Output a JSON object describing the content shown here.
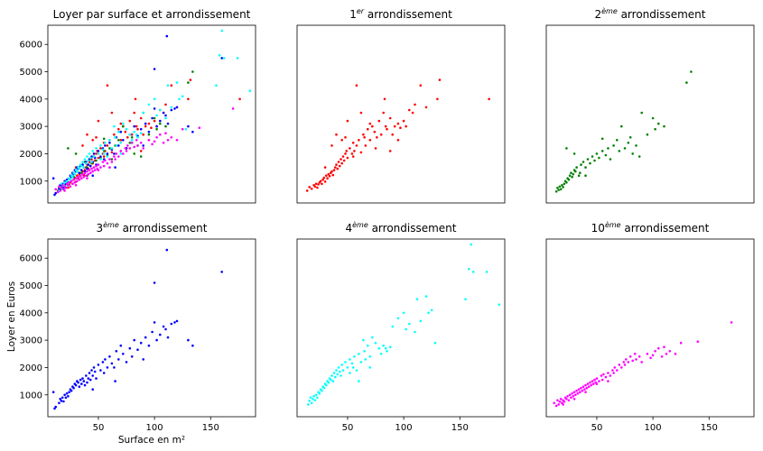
{
  "figure": {
    "shared_ylabel": "Loyer en Euros",
    "shared_xlabel": "Surface en m²",
    "x_ticks": [
      50,
      100,
      150
    ],
    "y_ticks": [
      1000,
      2000,
      3000,
      4000,
      5000,
      6000
    ],
    "xlim": [
      5,
      190
    ],
    "ylim": [
      200,
      6700
    ]
  },
  "chart_data": [
    {
      "type": "scatter",
      "title": "Loyer par surface et arrondissement",
      "subplot": "all",
      "series_colors": [
        "#ff0000",
        "#008000",
        "#0000ff",
        "#00ffff",
        "#ff00ff"
      ]
    },
    {
      "type": "scatter",
      "title_base": "1",
      "title_sup": "er",
      "title_rest": " arrondissement",
      "color": "#ff0000",
      "points": [
        [
          14,
          650
        ],
        [
          16,
          780
        ],
        [
          18,
          720
        ],
        [
          20,
          850
        ],
        [
          21,
          800
        ],
        [
          22,
          900
        ],
        [
          23,
          760
        ],
        [
          24,
          880
        ],
        [
          25,
          950
        ],
        [
          26,
          1000
        ],
        [
          27,
          900
        ],
        [
          28,
          1050
        ],
        [
          29,
          1120
        ],
        [
          30,
          980
        ],
        [
          31,
          1200
        ],
        [
          32,
          1100
        ],
        [
          33,
          1250
        ],
        [
          34,
          1180
        ],
        [
          35,
          1300
        ],
        [
          36,
          1350
        ],
        [
          37,
          1220
        ],
        [
          38,
          1400
        ],
        [
          39,
          1500
        ],
        [
          40,
          1600
        ],
        [
          41,
          1450
        ],
        [
          42,
          1700
        ],
        [
          43,
          1550
        ],
        [
          44,
          1800
        ],
        [
          45,
          1650
        ],
        [
          46,
          1900
        ],
        [
          47,
          1750
        ],
        [
          48,
          2000
        ],
        [
          49,
          2100
        ],
        [
          50,
          1850
        ],
        [
          52,
          2200
        ],
        [
          54,
          2000
        ],
        [
          55,
          2400
        ],
        [
          56,
          2100
        ],
        [
          58,
          2300
        ],
        [
          60,
          2500
        ],
        [
          62,
          2050
        ],
        [
          64,
          2700
        ],
        [
          65,
          2600
        ],
        [
          66,
          2300
        ],
        [
          68,
          2900
        ],
        [
          70,
          2500
        ],
        [
          72,
          3000
        ],
        [
          74,
          2800
        ],
        [
          76,
          2600
        ],
        [
          78,
          3200
        ],
        [
          80,
          2700
        ],
        [
          82,
          3500
        ],
        [
          84,
          3000
        ],
        [
          85,
          2900
        ],
        [
          88,
          3300
        ],
        [
          90,
          2700
        ],
        [
          92,
          3000
        ],
        [
          95,
          3100
        ],
        [
          97,
          2950
        ],
        [
          100,
          3200
        ],
        [
          102,
          3000
        ],
        [
          105,
          3600
        ],
        [
          108,
          3500
        ],
        [
          110,
          3800
        ],
        [
          115,
          4500
        ],
        [
          120,
          3700
        ],
        [
          130,
          4000
        ],
        [
          132,
          4700
        ],
        [
          58,
          4500
        ],
        [
          62,
          3500
        ],
        [
          45,
          2500
        ],
        [
          50,
          3200
        ],
        [
          70,
          3100
        ],
        [
          83,
          4000
        ],
        [
          176,
          4000
        ],
        [
          36,
          2300
        ],
        [
          40,
          2700
        ],
        [
          48,
          2600
        ],
        [
          55,
          1900
        ],
        [
          75,
          2200
        ],
        [
          30,
          1500
        ],
        [
          95,
          2500
        ],
        [
          88,
          2100
        ]
      ]
    },
    {
      "type": "scatter",
      "title_base": "2",
      "title_sup": "ème",
      "title_rest": " arrondissement",
      "color": "#008000",
      "points": [
        [
          14,
          620
        ],
        [
          15,
          750
        ],
        [
          16,
          680
        ],
        [
          17,
          800
        ],
        [
          18,
          700
        ],
        [
          19,
          850
        ],
        [
          20,
          780
        ],
        [
          21,
          900
        ],
        [
          22,
          1000
        ],
        [
          23,
          950
        ],
        [
          24,
          1100
        ],
        [
          25,
          1050
        ],
        [
          26,
          1200
        ],
        [
          27,
          1300
        ],
        [
          28,
          1150
        ],
        [
          29,
          1250
        ],
        [
          30,
          1400
        ],
        [
          31,
          1350
        ],
        [
          32,
          1500
        ],
        [
          34,
          1200
        ],
        [
          35,
          1300
        ],
        [
          36,
          1600
        ],
        [
          38,
          1700
        ],
        [
          40,
          1500
        ],
        [
          42,
          1800
        ],
        [
          44,
          1650
        ],
        [
          46,
          1900
        ],
        [
          48,
          1750
        ],
        [
          50,
          2000
        ],
        [
          52,
          1850
        ],
        [
          55,
          2100
        ],
        [
          58,
          1950
        ],
        [
          60,
          2200
        ],
        [
          62,
          1800
        ],
        [
          65,
          2300
        ],
        [
          68,
          2500
        ],
        [
          70,
          2100
        ],
        [
          72,
          3000
        ],
        [
          75,
          2200
        ],
        [
          78,
          2400
        ],
        [
          80,
          2600
        ],
        [
          82,
          2000
        ],
        [
          85,
          2300
        ],
        [
          88,
          1900
        ],
        [
          90,
          3500
        ],
        [
          95,
          2700
        ],
        [
          100,
          3300
        ],
        [
          102,
          2900
        ],
        [
          105,
          3100
        ],
        [
          110,
          3000
        ],
        [
          130,
          4600
        ],
        [
          134,
          5000
        ],
        [
          23,
          2200
        ],
        [
          30,
          2000
        ],
        [
          40,
          1200
        ],
        [
          55,
          2550
        ]
      ]
    },
    {
      "type": "scatter",
      "title_base": "3",
      "title_sup": "ème",
      "title_rest": " arrondissement",
      "color": "#0000ff",
      "points": [
        [
          10,
          1100
        ],
        [
          11,
          500
        ],
        [
          12,
          560
        ],
        [
          15,
          700
        ],
        [
          16,
          850
        ],
        [
          17,
          780
        ],
        [
          18,
          900
        ],
        [
          19,
          760
        ],
        [
          20,
          1000
        ],
        [
          21,
          900
        ],
        [
          22,
          1050
        ],
        [
          23,
          950
        ],
        [
          24,
          1100
        ],
        [
          25,
          1200
        ],
        [
          26,
          1150
        ],
        [
          27,
          1300
        ],
        [
          28,
          1250
        ],
        [
          29,
          1400
        ],
        [
          30,
          1350
        ],
        [
          31,
          1500
        ],
        [
          32,
          1450
        ],
        [
          33,
          1300
        ],
        [
          34,
          1550
        ],
        [
          35,
          1400
        ],
        [
          36,
          1600
        ],
        [
          37,
          1500
        ],
        [
          38,
          1350
        ],
        [
          39,
          1700
        ],
        [
          40,
          1450
        ],
        [
          41,
          1600
        ],
        [
          42,
          1800
        ],
        [
          43,
          1550
        ],
        [
          44,
          1900
        ],
        [
          45,
          1700
        ],
        [
          46,
          2000
        ],
        [
          47,
          1850
        ],
        [
          48,
          1600
        ],
        [
          50,
          2100
        ],
        [
          52,
          1900
        ],
        [
          54,
          2200
        ],
        [
          55,
          1800
        ],
        [
          56,
          2300
        ],
        [
          58,
          2000
        ],
        [
          60,
          2400
        ],
        [
          62,
          2150
        ],
        [
          64,
          2000
        ],
        [
          66,
          2600
        ],
        [
          68,
          2300
        ],
        [
          70,
          2800
        ],
        [
          72,
          2500
        ],
        [
          75,
          2200
        ],
        [
          78,
          2700
        ],
        [
          80,
          2400
        ],
        [
          82,
          3000
        ],
        [
          85,
          2650
        ],
        [
          88,
          2900
        ],
        [
          90,
          2300
        ],
        [
          92,
          3100
        ],
        [
          95,
          2800
        ],
        [
          98,
          3300
        ],
        [
          100,
          3650
        ],
        [
          102,
          3000
        ],
        [
          105,
          3200
        ],
        [
          108,
          3500
        ],
        [
          110,
          3400
        ],
        [
          112,
          3100
        ],
        [
          115,
          3600
        ],
        [
          118,
          3650
        ],
        [
          120,
          3700
        ],
        [
          130,
          3000
        ],
        [
          134,
          2800
        ],
        [
          100,
          5100
        ],
        [
          111,
          6300
        ],
        [
          160,
          5500
        ],
        [
          65,
          1500
        ],
        [
          45,
          1200
        ]
      ]
    },
    {
      "type": "scatter",
      "title_base": "4",
      "title_sup": "ème",
      "title_rest": " arrondissement",
      "color": "#00ffff",
      "points": [
        [
          15,
          650
        ],
        [
          16,
          780
        ],
        [
          17,
          900
        ],
        [
          18,
          700
        ],
        [
          19,
          850
        ],
        [
          20,
          950
        ],
        [
          21,
          800
        ],
        [
          22,
          1000
        ],
        [
          23,
          900
        ],
        [
          24,
          1100
        ],
        [
          25,
          1050
        ],
        [
          26,
          1200
        ],
        [
          27,
          1150
        ],
        [
          28,
          1300
        ],
        [
          29,
          1250
        ],
        [
          30,
          1400
        ],
        [
          31,
          1350
        ],
        [
          32,
          1500
        ],
        [
          33,
          1450
        ],
        [
          34,
          1600
        ],
        [
          35,
          1550
        ],
        [
          36,
          1700
        ],
        [
          37,
          1500
        ],
        [
          38,
          1800
        ],
        [
          39,
          1650
        ],
        [
          40,
          1900
        ],
        [
          41,
          1750
        ],
        [
          42,
          2000
        ],
        [
          43,
          1850
        ],
        [
          44,
          1700
        ],
        [
          45,
          2100
        ],
        [
          46,
          1900
        ],
        [
          48,
          2200
        ],
        [
          50,
          2000
        ],
        [
          52,
          2300
        ],
        [
          54,
          2150
        ],
        [
          55,
          2000
        ],
        [
          56,
          2400
        ],
        [
          58,
          1900
        ],
        [
          60,
          2500
        ],
        [
          62,
          2200
        ],
        [
          64,
          3000
        ],
        [
          65,
          2600
        ],
        [
          66,
          2300
        ],
        [
          68,
          2800
        ],
        [
          70,
          2400
        ],
        [
          72,
          3100
        ],
        [
          75,
          2900
        ],
        [
          78,
          2700
        ],
        [
          80,
          2500
        ],
        [
          82,
          2800
        ],
        [
          84,
          2700
        ],
        [
          85,
          2600
        ],
        [
          88,
          2750
        ],
        [
          90,
          3500
        ],
        [
          95,
          3800
        ],
        [
          100,
          4000
        ],
        [
          102,
          3400
        ],
        [
          105,
          3600
        ],
        [
          110,
          3300
        ],
        [
          112,
          4500
        ],
        [
          115,
          3700
        ],
        [
          120,
          4600
        ],
        [
          122,
          4000
        ],
        [
          125,
          4100
        ],
        [
          128,
          2900
        ],
        [
          155,
          4500
        ],
        [
          158,
          5600
        ],
        [
          160,
          6500
        ],
        [
          162,
          5500
        ],
        [
          174,
          5500
        ],
        [
          185,
          4300
        ],
        [
          52,
          1800
        ],
        [
          60,
          1500
        ],
        [
          70,
          2000
        ]
      ]
    },
    {
      "type": "scatter",
      "title_base": "10",
      "title_sup": "ème",
      "title_rest": " arrondissement",
      "color": "#ff00ff",
      "points": [
        [
          12,
          700
        ],
        [
          14,
          600
        ],
        [
          15,
          800
        ],
        [
          16,
          650
        ],
        [
          17,
          750
        ],
        [
          18,
          850
        ],
        [
          19,
          700
        ],
        [
          20,
          800
        ],
        [
          21,
          750
        ],
        [
          22,
          900
        ],
        [
          23,
          850
        ],
        [
          24,
          950
        ],
        [
          25,
          800
        ],
        [
          26,
          1000
        ],
        [
          27,
          900
        ],
        [
          28,
          1050
        ],
        [
          29,
          950
        ],
        [
          30,
          1100
        ],
        [
          31,
          1000
        ],
        [
          32,
          1150
        ],
        [
          33,
          1050
        ],
        [
          34,
          1200
        ],
        [
          35,
          1100
        ],
        [
          36,
          1250
        ],
        [
          37,
          1150
        ],
        [
          38,
          1300
        ],
        [
          39,
          1200
        ],
        [
          40,
          1350
        ],
        [
          41,
          1250
        ],
        [
          42,
          1400
        ],
        [
          43,
          1300
        ],
        [
          44,
          1450
        ],
        [
          45,
          1350
        ],
        [
          46,
          1500
        ],
        [
          47,
          1400
        ],
        [
          48,
          1550
        ],
        [
          49,
          1450
        ],
        [
          50,
          1600
        ],
        [
          52,
          1500
        ],
        [
          54,
          1700
        ],
        [
          55,
          1550
        ],
        [
          56,
          1750
        ],
        [
          58,
          1650
        ],
        [
          60,
          1800
        ],
        [
          62,
          1700
        ],
        [
          64,
          1900
        ],
        [
          65,
          1800
        ],
        [
          66,
          2000
        ],
        [
          68,
          1900
        ],
        [
          70,
          2100
        ],
        [
          72,
          2000
        ],
        [
          74,
          2200
        ],
        [
          75,
          2100
        ],
        [
          76,
          2300
        ],
        [
          78,
          2200
        ],
        [
          80,
          2400
        ],
        [
          82,
          2250
        ],
        [
          84,
          2500
        ],
        [
          85,
          2300
        ],
        [
          88,
          2400
        ],
        [
          90,
          2200
        ],
        [
          95,
          2500
        ],
        [
          98,
          2350
        ],
        [
          100,
          2450
        ],
        [
          102,
          2600
        ],
        [
          105,
          2700
        ],
        [
          108,
          2400
        ],
        [
          110,
          2750
        ],
        [
          112,
          2500
        ],
        [
          115,
          2600
        ],
        [
          120,
          2500
        ],
        [
          125,
          2900
        ],
        [
          140,
          2950
        ],
        [
          170,
          3650
        ],
        [
          20,
          650
        ],
        [
          30,
          850
        ],
        [
          40,
          1100
        ],
        [
          50,
          1400
        ],
        [
          60,
          1500
        ]
      ]
    }
  ]
}
